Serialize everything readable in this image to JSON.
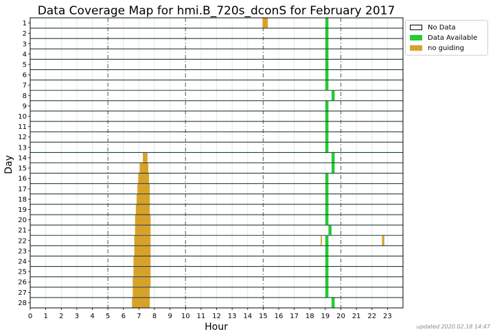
{
  "chart_data": {
    "type": "heatmap",
    "title": "Data Coverage Map for hmi.B_720s_dconS for February 2017",
    "xlabel": "Hour",
    "ylabel": "Day",
    "xlim": [
      0,
      24
    ],
    "x_ticks": [
      "0",
      "1",
      "2",
      "3",
      "4",
      "5",
      "6",
      "7",
      "8",
      "9",
      "10",
      "11",
      "12",
      "13",
      "14",
      "15",
      "16",
      "17",
      "18",
      "19",
      "20",
      "21",
      "22",
      "23"
    ],
    "days": [
      "1",
      "2",
      "3",
      "4",
      "5",
      "6",
      "7",
      "8",
      "9",
      "10",
      "11",
      "12",
      "13",
      "14",
      "15",
      "16",
      "17",
      "18",
      "19",
      "20",
      "21",
      "22",
      "23",
      "24",
      "25",
      "26",
      "27",
      "28"
    ],
    "dashed_hours": [
      5,
      10,
      15,
      20
    ],
    "grid": true,
    "legend_position": "outside-top-right",
    "legend": [
      {
        "label": "No Data",
        "color": "#ffffff"
      },
      {
        "label": "Data Available",
        "color": "#22cc33"
      },
      {
        "label": "no guiding",
        "color": "#d8a22a"
      }
    ],
    "colors": {
      "no_data": "#ffffff",
      "available": "#22cc33",
      "no_guiding": "#d8a22a",
      "row_line": "#1f3d3a"
    },
    "segments": [
      {
        "day": 1,
        "start": 14.95,
        "end": 15.3,
        "status": "no guiding"
      },
      {
        "day": 1,
        "start": 19.0,
        "end": 19.2,
        "status": "Data Available"
      },
      {
        "day": 2,
        "start": 19.0,
        "end": 19.2,
        "status": "Data Available"
      },
      {
        "day": 3,
        "start": 19.0,
        "end": 19.2,
        "status": "Data Available"
      },
      {
        "day": 4,
        "start": 19.0,
        "end": 19.2,
        "status": "Data Available"
      },
      {
        "day": 5,
        "start": 19.0,
        "end": 19.2,
        "status": "Data Available"
      },
      {
        "day": 6,
        "start": 19.0,
        "end": 19.2,
        "status": "Data Available"
      },
      {
        "day": 7,
        "start": 19.0,
        "end": 19.2,
        "status": "Data Available"
      },
      {
        "day": 8,
        "start": 19.4,
        "end": 19.6,
        "status": "Data Available"
      },
      {
        "day": 9,
        "start": 19.0,
        "end": 19.2,
        "status": "Data Available"
      },
      {
        "day": 10,
        "start": 19.0,
        "end": 19.2,
        "status": "Data Available"
      },
      {
        "day": 11,
        "start": 19.0,
        "end": 19.2,
        "status": "Data Available"
      },
      {
        "day": 12,
        "start": 19.0,
        "end": 19.2,
        "status": "Data Available"
      },
      {
        "day": 13,
        "start": 19.0,
        "end": 19.2,
        "status": "Data Available"
      },
      {
        "day": 14,
        "start": 7.25,
        "end": 7.55,
        "status": "no guiding"
      },
      {
        "day": 14,
        "start": 19.4,
        "end": 19.6,
        "status": "Data Available"
      },
      {
        "day": 15,
        "start": 7.05,
        "end": 7.6,
        "status": "no guiding"
      },
      {
        "day": 15,
        "start": 19.4,
        "end": 19.6,
        "status": "Data Available"
      },
      {
        "day": 16,
        "start": 6.95,
        "end": 7.65,
        "status": "no guiding"
      },
      {
        "day": 16,
        "start": 19.0,
        "end": 19.2,
        "status": "Data Available"
      },
      {
        "day": 17,
        "start": 6.9,
        "end": 7.7,
        "status": "no guiding"
      },
      {
        "day": 17,
        "start": 19.0,
        "end": 19.2,
        "status": "Data Available"
      },
      {
        "day": 18,
        "start": 6.85,
        "end": 7.7,
        "status": "no guiding"
      },
      {
        "day": 18,
        "start": 19.0,
        "end": 19.2,
        "status": "Data Available"
      },
      {
        "day": 19,
        "start": 6.8,
        "end": 7.7,
        "status": "no guiding"
      },
      {
        "day": 19,
        "start": 19.0,
        "end": 19.2,
        "status": "Data Available"
      },
      {
        "day": 20,
        "start": 6.75,
        "end": 7.75,
        "status": "no guiding"
      },
      {
        "day": 20,
        "start": 19.0,
        "end": 19.2,
        "status": "Data Available"
      },
      {
        "day": 21,
        "start": 6.75,
        "end": 7.75,
        "status": "no guiding"
      },
      {
        "day": 21,
        "start": 19.2,
        "end": 19.4,
        "status": "Data Available"
      },
      {
        "day": 22,
        "start": 6.7,
        "end": 7.75,
        "status": "no guiding"
      },
      {
        "day": 22,
        "start": 18.7,
        "end": 18.78,
        "status": "no guiding"
      },
      {
        "day": 22,
        "start": 19.0,
        "end": 19.2,
        "status": "Data Available"
      },
      {
        "day": 22,
        "start": 22.65,
        "end": 22.8,
        "status": "no guiding"
      },
      {
        "day": 23,
        "start": 6.7,
        "end": 7.75,
        "status": "no guiding"
      },
      {
        "day": 23,
        "start": 19.0,
        "end": 19.2,
        "status": "Data Available"
      },
      {
        "day": 24,
        "start": 6.65,
        "end": 7.75,
        "status": "no guiding"
      },
      {
        "day": 24,
        "start": 19.0,
        "end": 19.2,
        "status": "Data Available"
      },
      {
        "day": 25,
        "start": 6.65,
        "end": 7.75,
        "status": "no guiding"
      },
      {
        "day": 25,
        "start": 19.0,
        "end": 19.2,
        "status": "Data Available"
      },
      {
        "day": 26,
        "start": 6.6,
        "end": 7.75,
        "status": "no guiding"
      },
      {
        "day": 26,
        "start": 19.0,
        "end": 19.2,
        "status": "Data Available"
      },
      {
        "day": 27,
        "start": 6.6,
        "end": 7.7,
        "status": "no guiding"
      },
      {
        "day": 27,
        "start": 19.0,
        "end": 19.2,
        "status": "Data Available"
      },
      {
        "day": 28,
        "start": 6.55,
        "end": 7.7,
        "status": "no guiding"
      },
      {
        "day": 28,
        "start": 19.4,
        "end": 19.6,
        "status": "Data Available"
      }
    ]
  },
  "footer": {
    "updated_text": "updated 2020.02.18 14:47"
  }
}
